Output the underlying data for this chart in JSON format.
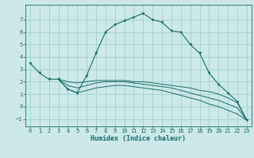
{
  "xlabel": "Humidex (Indice chaleur)",
  "background_color": "#cce8e8",
  "grid_color": "#99cccc",
  "line_color": "#1a6b6b",
  "xlim": [
    -0.5,
    23.5
  ],
  "ylim": [
    -1.6,
    8.2
  ],
  "xticks": [
    0,
    1,
    2,
    3,
    4,
    5,
    6,
    7,
    8,
    9,
    10,
    11,
    12,
    13,
    14,
    15,
    16,
    17,
    18,
    19,
    20,
    21,
    22,
    23
  ],
  "yticks": [
    -1,
    0,
    1,
    2,
    3,
    4,
    5,
    6,
    7
  ],
  "curve1_x": [
    0,
    1,
    2,
    3,
    4,
    5,
    6,
    7,
    8,
    9,
    10,
    11,
    12,
    13,
    14,
    15,
    16,
    17,
    18,
    19,
    20,
    21,
    22,
    23
  ],
  "curve1_y": [
    3.5,
    2.7,
    2.2,
    2.2,
    1.4,
    1.1,
    2.5,
    4.3,
    6.0,
    6.6,
    6.9,
    7.2,
    7.5,
    7.0,
    6.8,
    6.1,
    6.0,
    5.0,
    4.3,
    2.7,
    1.8,
    1.1,
    0.4,
    -1.1
  ],
  "curve_flat1_x": [
    3,
    4,
    5,
    6,
    7,
    8,
    9,
    10,
    11,
    12,
    13,
    14,
    15,
    16,
    17,
    18,
    19,
    20,
    21,
    22,
    23
  ],
  "curve_flat1_y": [
    2.2,
    2.0,
    1.9,
    2.0,
    2.1,
    2.1,
    2.1,
    2.1,
    2.0,
    2.0,
    1.9,
    1.8,
    1.7,
    1.6,
    1.5,
    1.3,
    1.2,
    1.0,
    0.7,
    0.3,
    -1.1
  ],
  "curve_flat2_x": [
    3,
    4,
    5,
    6,
    7,
    8,
    9,
    10,
    11,
    12,
    13,
    14,
    15,
    16,
    17,
    18,
    19,
    20,
    21,
    22,
    23
  ],
  "curve_flat2_y": [
    2.2,
    1.7,
    1.5,
    1.7,
    1.9,
    2.0,
    2.0,
    2.0,
    1.9,
    1.8,
    1.7,
    1.6,
    1.5,
    1.3,
    1.1,
    0.9,
    0.7,
    0.5,
    0.2,
    -0.1,
    -1.1
  ],
  "curve_flat3_x": [
    3,
    4,
    5,
    6,
    7,
    8,
    9,
    10,
    11,
    12,
    13,
    14,
    15,
    16,
    17,
    18,
    19,
    20,
    21,
    22,
    23
  ],
  "curve_flat3_y": [
    2.2,
    1.4,
    1.1,
    1.3,
    1.5,
    1.6,
    1.7,
    1.7,
    1.6,
    1.5,
    1.4,
    1.3,
    1.1,
    0.9,
    0.7,
    0.5,
    0.2,
    0.0,
    -0.3,
    -0.6,
    -1.1
  ]
}
